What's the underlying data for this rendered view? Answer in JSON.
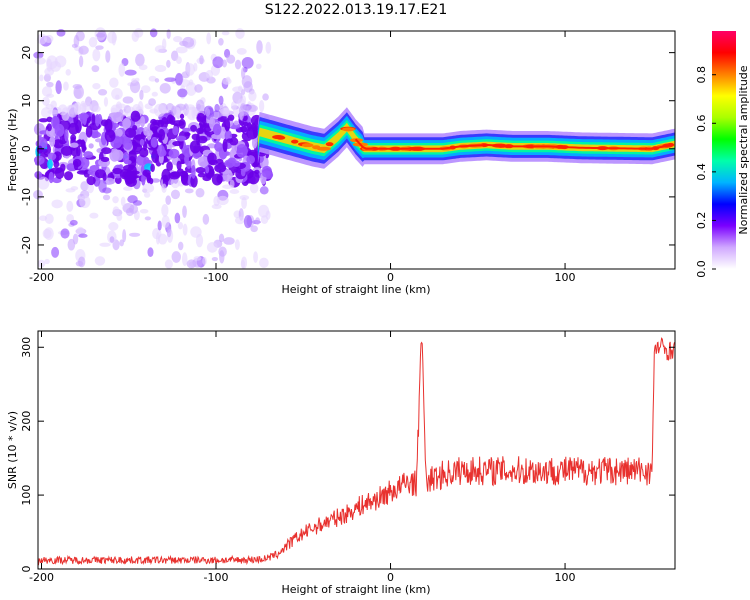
{
  "title": "S122.2022.013.19.17.E21",
  "chart_data": [
    {
      "type": "heatmap",
      "xlabel": "Height of straight line (km)",
      "ylabel": "Frequency (Hz)",
      "xlim": [
        -202,
        163
      ],
      "ylim": [
        -25,
        24.5
      ],
      "xticks": [
        -200,
        -100,
        0,
        100
      ],
      "yticks": [
        20,
        10,
        0,
        -10,
        -20
      ],
      "colorbar": {
        "label": "Normalized spectral amplitude",
        "range": [
          0,
          0.98
        ],
        "ticks": [
          "0.0",
          "0.2",
          "0.4",
          "0.6",
          "0.8"
        ],
        "colors": [
          "#ffffff",
          "#d0a8ff",
          "#7a00ff",
          "#0000ff",
          "#00b4ff",
          "#00ffaa",
          "#00ff00",
          "#aaff00",
          "#ffff00",
          "#ff8000",
          "#ff0000",
          "#ff0066"
        ]
      },
      "ridge": [
        {
          "x": -75,
          "y": 3.5
        },
        {
          "x": -65,
          "y": 2.5
        },
        {
          "x": -55,
          "y": 1.5
        },
        {
          "x": -45,
          "y": 0.5
        },
        {
          "x": -38,
          "y": 0.0
        },
        {
          "x": -30,
          "y": 2.5
        },
        {
          "x": -25,
          "y": 4.5
        },
        {
          "x": -20,
          "y": 2.0
        },
        {
          "x": -15,
          "y": 0.0
        },
        {
          "x": 0,
          "y": 0.0
        },
        {
          "x": 30,
          "y": 0.0
        },
        {
          "x": 40,
          "y": 0.5
        },
        {
          "x": 55,
          "y": 0.8
        },
        {
          "x": 70,
          "y": 0.5
        },
        {
          "x": 90,
          "y": 0.5
        },
        {
          "x": 110,
          "y": 0.2
        },
        {
          "x": 150,
          "y": 0.0
        },
        {
          "x": 163,
          "y": 1.0
        }
      ]
    },
    {
      "type": "line",
      "xlabel": "Height of straight line (km)",
      "ylabel": "SNR (10 * v/v)",
      "xlim": [
        -202,
        163
      ],
      "ylim": [
        0,
        322
      ],
      "xticks": [
        -200,
        -100,
        0,
        100
      ],
      "yticks": [
        0,
        100,
        200,
        300
      ],
      "color": "#e8312e",
      "series": [
        {
          "x": [
            -202,
            -180,
            -150,
            -120,
            -90,
            -75,
            -70,
            -65,
            -60,
            -55,
            -50,
            -45,
            -40,
            -35,
            -30,
            -25,
            -20,
            -15,
            -10,
            -5,
            0,
            5,
            10,
            15,
            17,
            18,
            19,
            20,
            25,
            30,
            40,
            50,
            60,
            75,
            90,
            100,
            120,
            140,
            150,
            151,
            152,
            155,
            160,
            163
          ],
          "y": [
            12,
            12,
            12,
            12,
            12,
            13,
            15,
            20,
            30,
            40,
            48,
            55,
            60,
            65,
            70,
            75,
            82,
            88,
            92,
            98,
            105,
            110,
            118,
            115,
            290,
            300,
            250,
            120,
            122,
            128,
            133,
            133,
            133,
            133,
            133,
            133,
            133,
            133,
            133,
            280,
            300,
            300,
            295,
            300
          ]
        }
      ]
    }
  ]
}
